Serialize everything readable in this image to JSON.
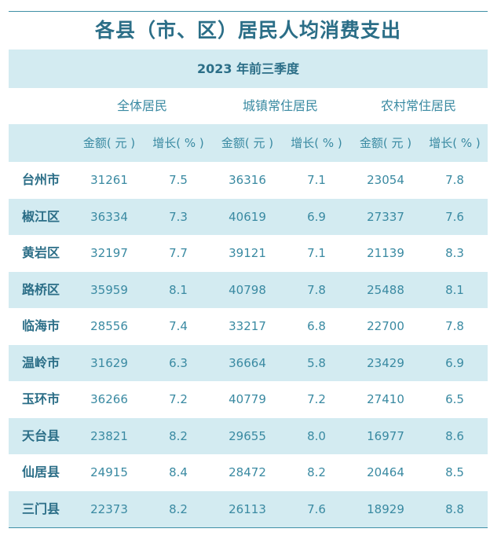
{
  "title": "各县（市、区）居民人均消费支出",
  "period": "2023 年前三季度",
  "groups": [
    "全体居民",
    "城镇常住居民",
    "农村常住居民"
  ],
  "subheaders": [
    "金额( 元 )",
    "增长( % )",
    "金额( 元 )",
    "增长( % )",
    "金额( 元 )",
    "增长( % )"
  ],
  "rows": [
    {
      "name": "台州市",
      "v": [
        "31261",
        "7.5",
        "36316",
        "7.1",
        "23054",
        "7.8"
      ]
    },
    {
      "name": "椒江区",
      "v": [
        "36334",
        "7.3",
        "40619",
        "6.9",
        "27337",
        "7.6"
      ]
    },
    {
      "name": "黄岩区",
      "v": [
        "32197",
        "7.7",
        "39121",
        "7.1",
        "21139",
        "8.3"
      ]
    },
    {
      "name": "路桥区",
      "v": [
        "35959",
        "8.1",
        "40798",
        "7.8",
        "25488",
        "8.1"
      ]
    },
    {
      "name": "临海市",
      "v": [
        "28556",
        "7.4",
        "33217",
        "6.8",
        "22700",
        "7.8"
      ]
    },
    {
      "name": "温岭市",
      "v": [
        "31629",
        "6.3",
        "36664",
        "5.8",
        "23429",
        "6.9"
      ]
    },
    {
      "name": "玉环市",
      "v": [
        "36266",
        "7.2",
        "40779",
        "7.2",
        "27410",
        "6.5"
      ]
    },
    {
      "name": "天台县",
      "v": [
        "23821",
        "8.2",
        "29655",
        "8.0",
        "16977",
        "8.6"
      ]
    },
    {
      "name": "仙居县",
      "v": [
        "24915",
        "8.4",
        "28472",
        "8.2",
        "20464",
        "8.5"
      ]
    },
    {
      "name": "三门县",
      "v": [
        "22373",
        "8.2",
        "26113",
        "7.6",
        "18929",
        "8.8"
      ]
    }
  ],
  "colors": {
    "accent": "#2b6e87",
    "text": "#3a8aa2",
    "band": "#d3ebf1",
    "rule": "#3f8fa6"
  }
}
